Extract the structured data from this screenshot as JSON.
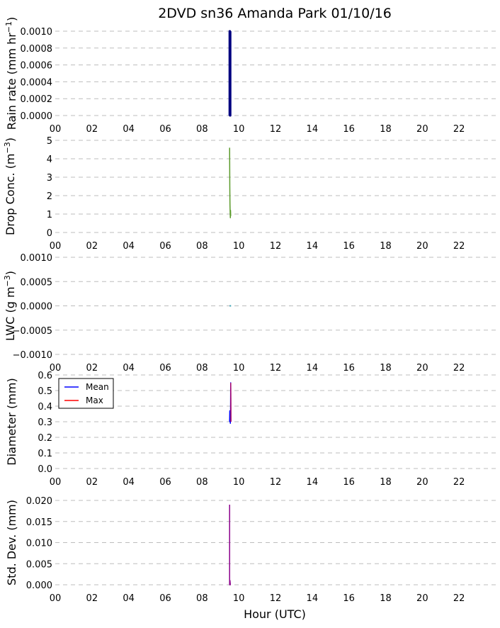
{
  "figure": {
    "title": "2DVD sn36 Amanda Park 01/10/16",
    "xlabel": "Hour (UTC)"
  },
  "chart_data": [
    {
      "type": "line",
      "ylabel_main": "Rain rate (mm hr",
      "ylabel_sup": "−1",
      "ylabel_tail": ")",
      "ylim": [
        0,
        0.001
      ],
      "yticks": [
        "0.0000",
        "0.0002",
        "0.0004",
        "0.0006",
        "0.0008",
        "0.0010"
      ],
      "ytick_values": [
        0,
        0.0002,
        0.0004,
        0.0006,
        0.0008,
        0.001
      ],
      "xlim": [
        0,
        24
      ],
      "xticks": [
        "00",
        "02",
        "04",
        "06",
        "08",
        "10",
        "12",
        "14",
        "16",
        "18",
        "20",
        "22"
      ],
      "xtick_values": [
        0,
        2,
        4,
        6,
        8,
        10,
        12,
        14,
        16,
        18,
        20,
        22
      ],
      "grid": true,
      "series": [
        {
          "color": "#000080",
          "width": 3,
          "x": [
            9.5,
            9.5,
            9.52,
            9.52,
            9.54,
            9.54
          ],
          "y": [
            0,
            0.001,
            0.001,
            0,
            0,
            0.001
          ]
        }
      ]
    },
    {
      "type": "line",
      "ylabel_main": "Drop Conc. (m",
      "ylabel_sup": "−3",
      "ylabel_tail": ")",
      "ylim": [
        0,
        5
      ],
      "yticks": [
        "0",
        "1",
        "2",
        "3",
        "4",
        "5"
      ],
      "ytick_values": [
        0,
        1,
        2,
        3,
        4,
        5
      ],
      "xlim": [
        0,
        24
      ],
      "xticks": [
        "00",
        "02",
        "04",
        "06",
        "08",
        "10",
        "12",
        "14",
        "16",
        "18",
        "20",
        "22"
      ],
      "xtick_values": [
        0,
        2,
        4,
        6,
        8,
        10,
        12,
        14,
        16,
        18,
        20,
        22
      ],
      "grid": true,
      "series": [
        {
          "color": "#5a9a2a",
          "width": 1.5,
          "x": [
            9.5,
            9.51,
            9.52,
            9.53,
            9.54,
            9.55,
            9.56
          ],
          "y": [
            4.6,
            2.5,
            1.5,
            1.1,
            0.8,
            1.2,
            0.9
          ]
        }
      ]
    },
    {
      "type": "line",
      "ylabel_main": "LWC (g m",
      "ylabel_sup": "−3",
      "ylabel_tail": ")",
      "ylim": [
        -0.001,
        0.001
      ],
      "yticks": [
        "−0.0010",
        "−0.0005",
        "0.0000",
        "0.0005",
        "0.0010"
      ],
      "ytick_values": [
        -0.001,
        -0.0005,
        0,
        0.0005,
        0.001
      ],
      "xlim": [
        0,
        24
      ],
      "xticks": [
        "00",
        "02",
        "04",
        "06",
        "08",
        "10",
        "12",
        "14",
        "16",
        "18",
        "20",
        "22"
      ],
      "xtick_values": [
        0,
        2,
        4,
        6,
        8,
        10,
        12,
        14,
        16,
        18,
        20,
        22
      ],
      "grid": true,
      "series": [
        {
          "color": "#3aa0b4",
          "width": 2,
          "x": [
            9.5,
            9.58
          ],
          "y": [
            0,
            0
          ]
        }
      ]
    },
    {
      "type": "line",
      "ylabel_main": "Diameter (mm)",
      "ylabel_sup": "",
      "ylabel_tail": "",
      "ylim": [
        0,
        0.6
      ],
      "yticks": [
        "0.0",
        "0.1",
        "0.2",
        "0.3",
        "0.4",
        "0.5",
        "0.6"
      ],
      "ytick_values": [
        0,
        0.1,
        0.2,
        0.3,
        0.4,
        0.5,
        0.6
      ],
      "xlim": [
        0,
        24
      ],
      "xticks": [
        "00",
        "02",
        "04",
        "06",
        "08",
        "10",
        "12",
        "14",
        "16",
        "18",
        "20",
        "22"
      ],
      "xtick_values": [
        0,
        2,
        4,
        6,
        8,
        10,
        12,
        14,
        16,
        18,
        20,
        22
      ],
      "grid": true,
      "legend": {
        "position": "upper-left"
      },
      "series": [
        {
          "name": "Mean",
          "color": "#0000ff",
          "width": 1.5,
          "x": [
            9.5,
            9.51,
            9.52,
            9.53,
            9.54,
            9.55,
            9.56,
            9.57
          ],
          "y": [
            0.3,
            0.37,
            0.32,
            0.3,
            0.29,
            0.33,
            0.55,
            0.3
          ]
        },
        {
          "name": "Max",
          "color": "#ff0000",
          "width": 1.5,
          "x": [
            9.56,
            9.57
          ],
          "y": [
            0.55,
            0.3
          ]
        },
        {
          "color": "#8b008b",
          "width": 1.2,
          "x": [
            9.56,
            9.56
          ],
          "y": [
            0.3,
            0.55
          ]
        }
      ]
    },
    {
      "type": "line",
      "ylabel_main": "Std. Dev. (mm)",
      "ylabel_sup": "",
      "ylabel_tail": "",
      "ylim": [
        0,
        0.02
      ],
      "yticks": [
        "0.000",
        "0.005",
        "0.010",
        "0.015",
        "0.020"
      ],
      "ytick_values": [
        0,
        0.005,
        0.01,
        0.015,
        0.02
      ],
      "xlim": [
        0,
        24
      ],
      "xticks": [
        "00",
        "02",
        "04",
        "06",
        "08",
        "10",
        "12",
        "14",
        "16",
        "18",
        "20",
        "22"
      ],
      "xtick_values": [
        0,
        2,
        4,
        6,
        8,
        10,
        12,
        14,
        16,
        18,
        20,
        22
      ],
      "grid": true,
      "series": [
        {
          "color": "#8b008b",
          "width": 1.5,
          "x": [
            9.5,
            9.5,
            9.52,
            9.52,
            9.54,
            9.56
          ],
          "y": [
            0.019,
            0,
            0,
            0.001,
            0,
            0
          ]
        }
      ]
    }
  ]
}
